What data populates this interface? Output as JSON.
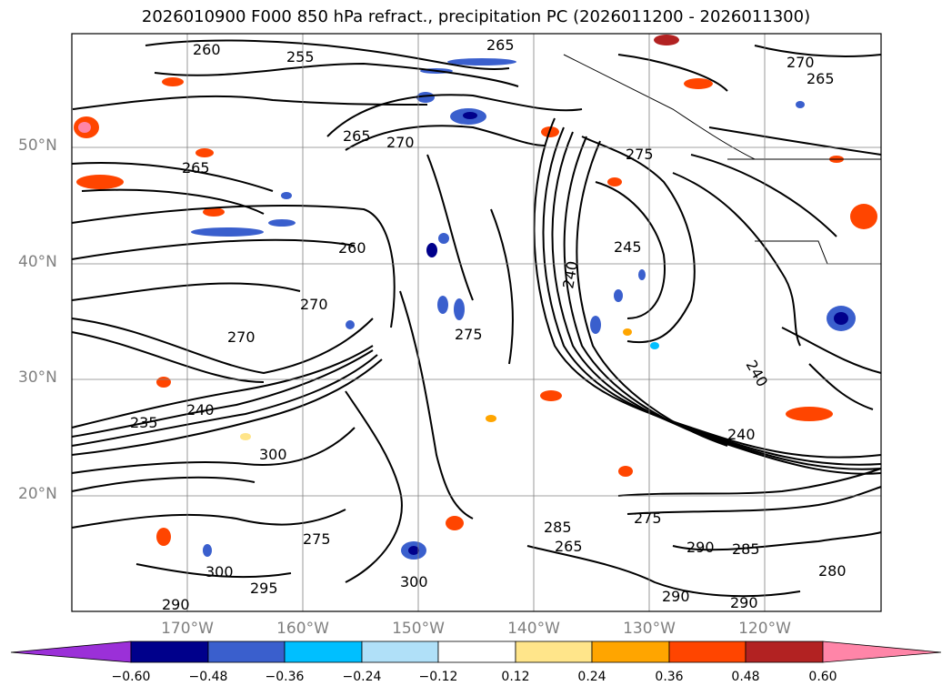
{
  "title": "2026010900 F000 850 hPa refract., precipitation PC (2026011200 - 2026011300)",
  "lat_labels": [
    "50°N",
    "40°N",
    "30°N",
    "20°N"
  ],
  "lon_labels": [
    "170°W",
    "160°W",
    "150°W",
    "140°W",
    "130°W",
    "120°W"
  ],
  "contour_labels": [
    "260",
    "255",
    "265",
    "270",
    "265",
    "265",
    "265",
    "260",
    "270",
    "270",
    "270",
    "275",
    "275",
    "240",
    "245",
    "240",
    "240",
    "235",
    "240",
    "300",
    "275",
    "300",
    "290",
    "295",
    "300",
    "285",
    "265",
    "275",
    "290",
    "285",
    "290",
    "290",
    "280"
  ],
  "colorbar": {
    "ticks": [
      "−0.60",
      "−0.48",
      "−0.36",
      "−0.24",
      "−0.12",
      "0.12",
      "0.24",
      "0.36",
      "0.48",
      "0.60"
    ],
    "colors": [
      "#9b30d8",
      "#00008b",
      "#3a5fcd",
      "#00bfff",
      "#b0e0f8",
      "#ffffff",
      "#ffe58a",
      "#ffa500",
      "#ff4500",
      "#b22222",
      "#ff85a8"
    ]
  }
}
